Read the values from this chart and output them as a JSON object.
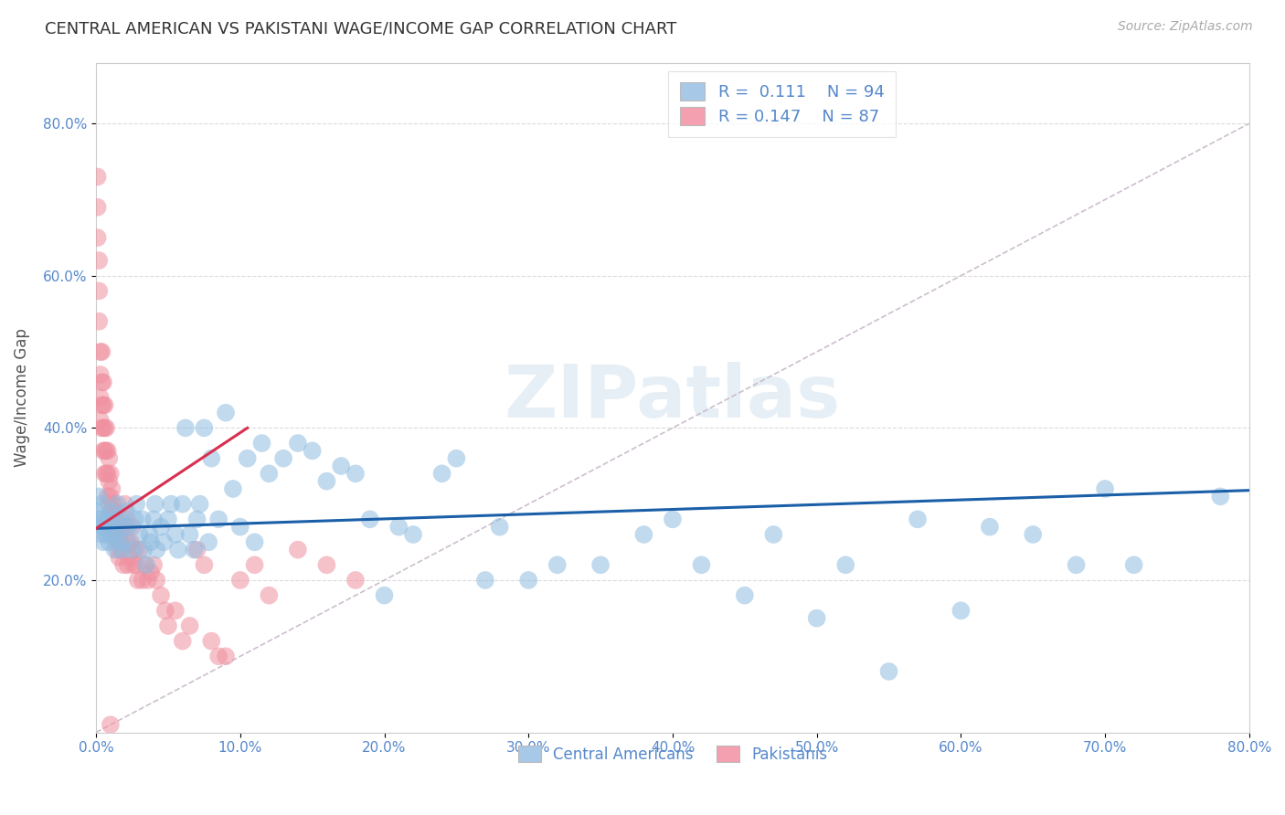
{
  "title": "CENTRAL AMERICAN VS PAKISTANI WAGE/INCOME GAP CORRELATION CHART",
  "source": "Source: ZipAtlas.com",
  "xlim": [
    0.0,
    0.8
  ],
  "ylim": [
    0.0,
    0.88
  ],
  "ylabel": "Wage/Income Gap",
  "legend_entries": [
    {
      "label": "Central Americans",
      "R": "0.111",
      "N": "94",
      "color": "#a8c8e8"
    },
    {
      "label": "Pakistanis",
      "R": "0.147",
      "N": "87",
      "color": "#f4a0b0"
    }
  ],
  "ca_color": "#90bce0",
  "pak_color": "#f090a0",
  "trend_ca_color": "#1a5fa8",
  "trend_pak_color": "#d83050",
  "ref_line_color": "#c8b8c8",
  "grid_color": "#d8d8d8",
  "axis_label_color": "#5588cc",
  "watermark": "ZIPatlas",
  "ca_x": [
    0.001,
    0.002,
    0.002,
    0.003,
    0.004,
    0.004,
    0.005,
    0.005,
    0.006,
    0.007,
    0.008,
    0.009,
    0.01,
    0.01,
    0.011,
    0.012,
    0.013,
    0.014,
    0.015,
    0.016,
    0.017,
    0.018,
    0.019,
    0.02,
    0.021,
    0.022,
    0.025,
    0.027,
    0.028,
    0.03,
    0.032,
    0.033,
    0.035,
    0.037,
    0.038,
    0.04,
    0.041,
    0.042,
    0.045,
    0.047,
    0.05,
    0.052,
    0.055,
    0.057,
    0.06,
    0.062,
    0.065,
    0.068,
    0.07,
    0.072,
    0.075,
    0.078,
    0.08,
    0.085,
    0.09,
    0.095,
    0.1,
    0.105,
    0.11,
    0.115,
    0.12,
    0.13,
    0.14,
    0.15,
    0.16,
    0.17,
    0.18,
    0.19,
    0.2,
    0.21,
    0.22,
    0.24,
    0.25,
    0.27,
    0.28,
    0.3,
    0.32,
    0.35,
    0.38,
    0.4,
    0.42,
    0.45,
    0.47,
    0.5,
    0.52,
    0.55,
    0.57,
    0.6,
    0.62,
    0.65,
    0.68,
    0.7,
    0.72,
    0.78
  ],
  "ca_y": [
    0.29,
    0.31,
    0.28,
    0.27,
    0.3,
    0.26,
    0.28,
    0.25,
    0.27,
    0.26,
    0.28,
    0.25,
    0.29,
    0.27,
    0.26,
    0.28,
    0.24,
    0.26,
    0.3,
    0.25,
    0.28,
    0.24,
    0.27,
    0.25,
    0.29,
    0.27,
    0.24,
    0.28,
    0.3,
    0.26,
    0.28,
    0.24,
    0.22,
    0.26,
    0.25,
    0.28,
    0.3,
    0.24,
    0.27,
    0.25,
    0.28,
    0.3,
    0.26,
    0.24,
    0.3,
    0.4,
    0.26,
    0.24,
    0.28,
    0.3,
    0.4,
    0.25,
    0.36,
    0.28,
    0.42,
    0.32,
    0.27,
    0.36,
    0.25,
    0.38,
    0.34,
    0.36,
    0.38,
    0.37,
    0.33,
    0.35,
    0.34,
    0.28,
    0.18,
    0.27,
    0.26,
    0.34,
    0.36,
    0.2,
    0.27,
    0.2,
    0.22,
    0.22,
    0.26,
    0.28,
    0.22,
    0.18,
    0.26,
    0.15,
    0.22,
    0.08,
    0.28,
    0.16,
    0.27,
    0.26,
    0.22,
    0.32,
    0.22,
    0.31
  ],
  "pak_x": [
    0.001,
    0.001,
    0.001,
    0.002,
    0.002,
    0.002,
    0.003,
    0.003,
    0.003,
    0.003,
    0.004,
    0.004,
    0.004,
    0.004,
    0.005,
    0.005,
    0.005,
    0.005,
    0.006,
    0.006,
    0.006,
    0.006,
    0.007,
    0.007,
    0.007,
    0.008,
    0.008,
    0.008,
    0.009,
    0.009,
    0.009,
    0.01,
    0.01,
    0.01,
    0.011,
    0.011,
    0.012,
    0.012,
    0.013,
    0.013,
    0.014,
    0.014,
    0.015,
    0.015,
    0.016,
    0.016,
    0.017,
    0.018,
    0.018,
    0.019,
    0.02,
    0.02,
    0.021,
    0.022,
    0.022,
    0.023,
    0.024,
    0.025,
    0.026,
    0.027,
    0.028,
    0.029,
    0.03,
    0.032,
    0.034,
    0.036,
    0.038,
    0.04,
    0.042,
    0.045,
    0.048,
    0.05,
    0.055,
    0.06,
    0.065,
    0.07,
    0.075,
    0.08,
    0.085,
    0.09,
    0.1,
    0.11,
    0.12,
    0.14,
    0.16,
    0.18,
    0.01
  ],
  "pak_y": [
    0.73,
    0.69,
    0.65,
    0.62,
    0.58,
    0.54,
    0.5,
    0.47,
    0.44,
    0.41,
    0.5,
    0.46,
    0.43,
    0.4,
    0.46,
    0.43,
    0.4,
    0.37,
    0.43,
    0.4,
    0.37,
    0.34,
    0.4,
    0.37,
    0.34,
    0.37,
    0.34,
    0.31,
    0.36,
    0.33,
    0.3,
    0.34,
    0.31,
    0.28,
    0.32,
    0.29,
    0.3,
    0.27,
    0.29,
    0.26,
    0.28,
    0.25,
    0.27,
    0.24,
    0.26,
    0.23,
    0.25,
    0.27,
    0.24,
    0.22,
    0.3,
    0.27,
    0.28,
    0.25,
    0.22,
    0.23,
    0.25,
    0.27,
    0.22,
    0.24,
    0.22,
    0.2,
    0.24,
    0.2,
    0.22,
    0.2,
    0.21,
    0.22,
    0.2,
    0.18,
    0.16,
    0.14,
    0.16,
    0.12,
    0.14,
    0.24,
    0.22,
    0.12,
    0.1,
    0.1,
    0.2,
    0.22,
    0.18,
    0.24,
    0.22,
    0.2,
    0.01
  ],
  "trend_ca_x0": 0.0,
  "trend_ca_x1": 0.8,
  "trend_ca_y0": 0.268,
  "trend_ca_y1": 0.318,
  "trend_pak_x0": 0.0,
  "trend_pak_x1": 0.105,
  "trend_pak_y0": 0.268,
  "trend_pak_y1": 0.4
}
